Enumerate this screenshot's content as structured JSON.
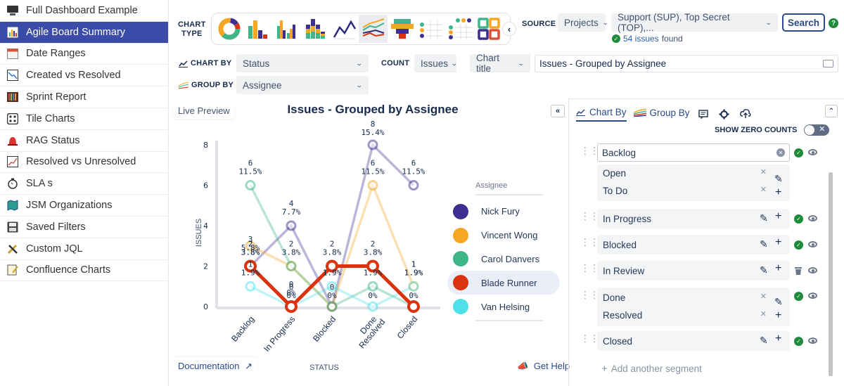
{
  "sidebar": {
    "items": [
      {
        "label": "Full Dashboard Example",
        "icon": "monitor-icon",
        "active": false
      },
      {
        "label": "Agile Board Summary",
        "icon": "bar-chart-icon",
        "active": true
      },
      {
        "label": "Date Ranges",
        "icon": "calendar-icon",
        "active": false
      },
      {
        "label": "Created vs Resolved",
        "icon": "trend-down-icon",
        "active": false
      },
      {
        "label": "Sprint Report",
        "icon": "sprint-bars-icon",
        "active": false
      },
      {
        "label": "Tile Charts",
        "icon": "tiles-icon",
        "active": false
      },
      {
        "label": "RAG Status",
        "icon": "alarm-light-icon",
        "active": false
      },
      {
        "label": "Resolved vs Unresolved",
        "icon": "trend-up-icon",
        "active": false
      },
      {
        "label": "SLA s",
        "icon": "stopwatch-icon",
        "active": false
      },
      {
        "label": "JSM Organizations",
        "icon": "map-icon",
        "active": false
      },
      {
        "label": "Saved Filters",
        "icon": "floppy-disk-icon",
        "active": false
      },
      {
        "label": "Custom JQL",
        "icon": "tools-icon",
        "active": false
      },
      {
        "label": "Confluence Charts",
        "icon": "note-edit-icon",
        "active": false
      }
    ]
  },
  "toolbar": {
    "chart_type_label_1": "CHART",
    "chart_type_label_2": "TYPE",
    "chart_types": [
      "donut",
      "bar",
      "grouped-bar",
      "stacked-bar",
      "line",
      "multi-line",
      "funnel",
      "dot-matrix",
      "dot-grid",
      "tiles"
    ],
    "selected_chart_type": "multi-line",
    "collapse_symbol": "‹",
    "source_label": "SOURCE",
    "source_type": "Projects",
    "source_value": "Support (SUP), Top Secret (TOP),...",
    "search_label": "Search",
    "help_symbol": "?",
    "issues_count": "54 issues",
    "issues_found_suffix": "found",
    "chart_by_label": "CHART BY",
    "chart_by_value": "Status",
    "group_by_label": "GROUP BY",
    "group_by_value": "Assignee",
    "count_label": "COUNT",
    "count_value": "Issues",
    "title_mode": "Chart title",
    "title_value": "Issues - Grouped by Assignee"
  },
  "preview": {
    "live_preview_label": "Live Preview",
    "collapse_symbol": "«",
    "documentation_label": "Documentation",
    "get_help_label": "Get Help",
    "legend_title": "Assignee"
  },
  "chart_data": {
    "type": "line",
    "title": "Issues - Grouped by Assignee",
    "xlabel": "STATUS",
    "ylabel": "ISSUES",
    "categories": [
      "Backlog",
      "In Progress",
      "Blocked",
      "Done\nResolved",
      "Closed"
    ],
    "ylim": [
      0,
      8
    ],
    "yticks": [
      0,
      2,
      4,
      6,
      8
    ],
    "legend_position": "right",
    "highlighted_series": "Blade Runner",
    "series": [
      {
        "name": "Nick Fury",
        "color": "#3d2f8f",
        "values": [
          2,
          4,
          0,
          8,
          6
        ],
        "labels": [
          "2 3.8%",
          "4 7.7%",
          "0 0%",
          "8 15.4%",
          "6 11.5%"
        ]
      },
      {
        "name": "Vincent Wong",
        "color": "#f5a623",
        "values": [
          3,
          2,
          0,
          6,
          1
        ],
        "labels": [
          "3 5.8%",
          "2 3.8%",
          "0 0%",
          "6 11.5%",
          "1 1.9%"
        ]
      },
      {
        "name": "Carol Danvers",
        "color": "#3fb58a",
        "values": [
          6,
          2,
          0,
          1,
          0
        ],
        "labels": [
          "6 11.5%",
          "2 3.8%",
          "0 0%",
          "1 1.9%",
          "0 0%"
        ]
      },
      {
        "name": "Blade Runner",
        "color": "#d9330f",
        "values": [
          2,
          0,
          2,
          2,
          0
        ],
        "labels": [
          "2 3.8%",
          "0 0%",
          "2 3.8%",
          "2 3.8%",
          "0 0%"
        ]
      },
      {
        "name": "Van Helsing",
        "color": "#4fe0ea",
        "values": [
          1,
          0,
          1,
          0,
          1
        ],
        "labels": [
          "1 1.9%",
          "0 0%",
          "1 1.9%",
          "0 0%",
          "1 1.9%"
        ]
      }
    ]
  },
  "panel": {
    "tabs": [
      {
        "label": "Chart By",
        "active": true
      },
      {
        "label": "Group By",
        "active": false
      }
    ],
    "show_zero_counts_label": "SHOW ZERO COUNTS",
    "show_zero_counts": false,
    "segments": [
      {
        "name": "Backlog",
        "editing": true,
        "statuses": [
          "Open",
          "To Do"
        ],
        "state": "check"
      },
      {
        "name": "In Progress",
        "statuses": [],
        "state": "check"
      },
      {
        "name": "Blocked",
        "statuses": [],
        "state": "check"
      },
      {
        "name": "In Review",
        "statuses": [],
        "state": "trash"
      },
      {
        "name": "",
        "statuses": [
          "Done",
          "Resolved"
        ],
        "state": "check"
      },
      {
        "name": "Closed",
        "statuses": [],
        "state": "check"
      }
    ],
    "add_segment_label": "Add another segment"
  }
}
